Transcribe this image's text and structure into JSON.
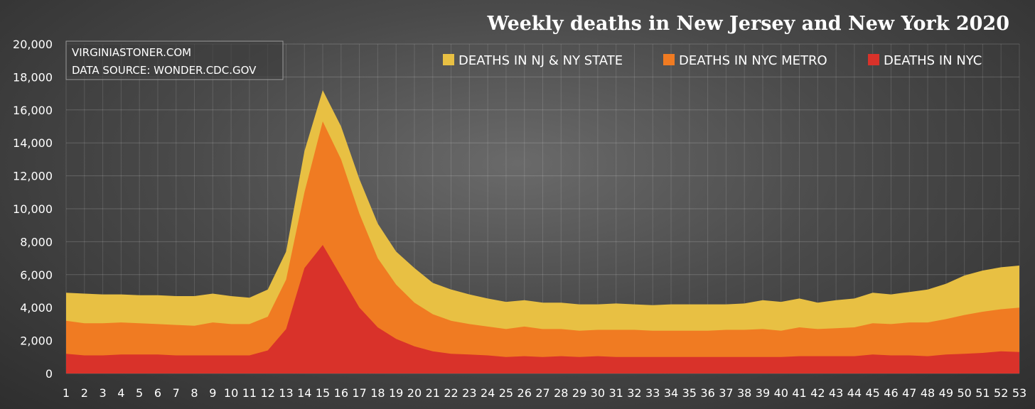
{
  "chart_data": {
    "type": "area",
    "title": "Weekly deaths in New Jersey and New York 2020",
    "xlabel": "",
    "ylabel": "",
    "ylim": [
      0,
      20000
    ],
    "y_ticks": [
      "0",
      "2,000",
      "4,000",
      "6,000",
      "8,000",
      "10,000",
      "12,000",
      "14,000",
      "16,000",
      "18,000",
      "20,000"
    ],
    "x": [
      1,
      2,
      3,
      4,
      5,
      6,
      7,
      8,
      9,
      10,
      11,
      12,
      13,
      14,
      15,
      16,
      17,
      18,
      19,
      20,
      21,
      22,
      23,
      24,
      25,
      26,
      27,
      28,
      29,
      30,
      31,
      32,
      33,
      34,
      35,
      36,
      37,
      38,
      39,
      40,
      41,
      42,
      43,
      44,
      45,
      46,
      47,
      48,
      49,
      50,
      51,
      52,
      53
    ],
    "grid": true,
    "legend_position": "top-right",
    "source_box": [
      "VIRGINIASTONER.COM",
      "DATA SOURCE: WONDER.CDC.GOV"
    ],
    "series": [
      {
        "name": "DEATHS IN NJ & NY STATE",
        "color": "#e8c043",
        "values": [
          4900,
          4850,
          4800,
          4800,
          4750,
          4750,
          4700,
          4700,
          4850,
          4700,
          4600,
          5100,
          7400,
          13500,
          17200,
          15000,
          11800,
          9100,
          7400,
          6400,
          5500,
          5100,
          4800,
          4550,
          4350,
          4450,
          4300,
          4300,
          4200,
          4200,
          4250,
          4200,
          4150,
          4200,
          4200,
          4200,
          4200,
          4250,
          4450,
          4350,
          4550,
          4300,
          4450,
          4550,
          4900,
          4800,
          4950,
          5100,
          5450,
          5950,
          6250,
          6450,
          6550
        ]
      },
      {
        "name": "DEATHS IN NYC METRO",
        "color": "#f07b22",
        "values": [
          3200,
          3050,
          3050,
          3100,
          3050,
          3000,
          2950,
          2900,
          3100,
          3000,
          3000,
          3450,
          5700,
          11000,
          15300,
          13000,
          9700,
          7000,
          5400,
          4300,
          3600,
          3200,
          3000,
          2850,
          2700,
          2850,
          2700,
          2700,
          2600,
          2650,
          2650,
          2650,
          2600,
          2600,
          2600,
          2600,
          2650,
          2650,
          2700,
          2600,
          2800,
          2700,
          2750,
          2800,
          3050,
          3000,
          3100,
          3100,
          3300,
          3550,
          3750,
          3900,
          4000
        ]
      },
      {
        "name": "DEATHS IN NYC",
        "color": "#d9322a",
        "values": [
          1200,
          1100,
          1100,
          1150,
          1150,
          1150,
          1100,
          1100,
          1100,
          1100,
          1100,
          1400,
          2700,
          6400,
          7800,
          5900,
          4000,
          2800,
          2100,
          1650,
          1350,
          1200,
          1150,
          1100,
          1000,
          1050,
          1000,
          1050,
          1000,
          1050,
          1000,
          1000,
          1000,
          1000,
          1000,
          1000,
          1000,
          1000,
          1000,
          1000,
          1050,
          1050,
          1050,
          1050,
          1150,
          1100,
          1100,
          1050,
          1150,
          1200,
          1250,
          1350,
          1300
        ]
      }
    ]
  }
}
